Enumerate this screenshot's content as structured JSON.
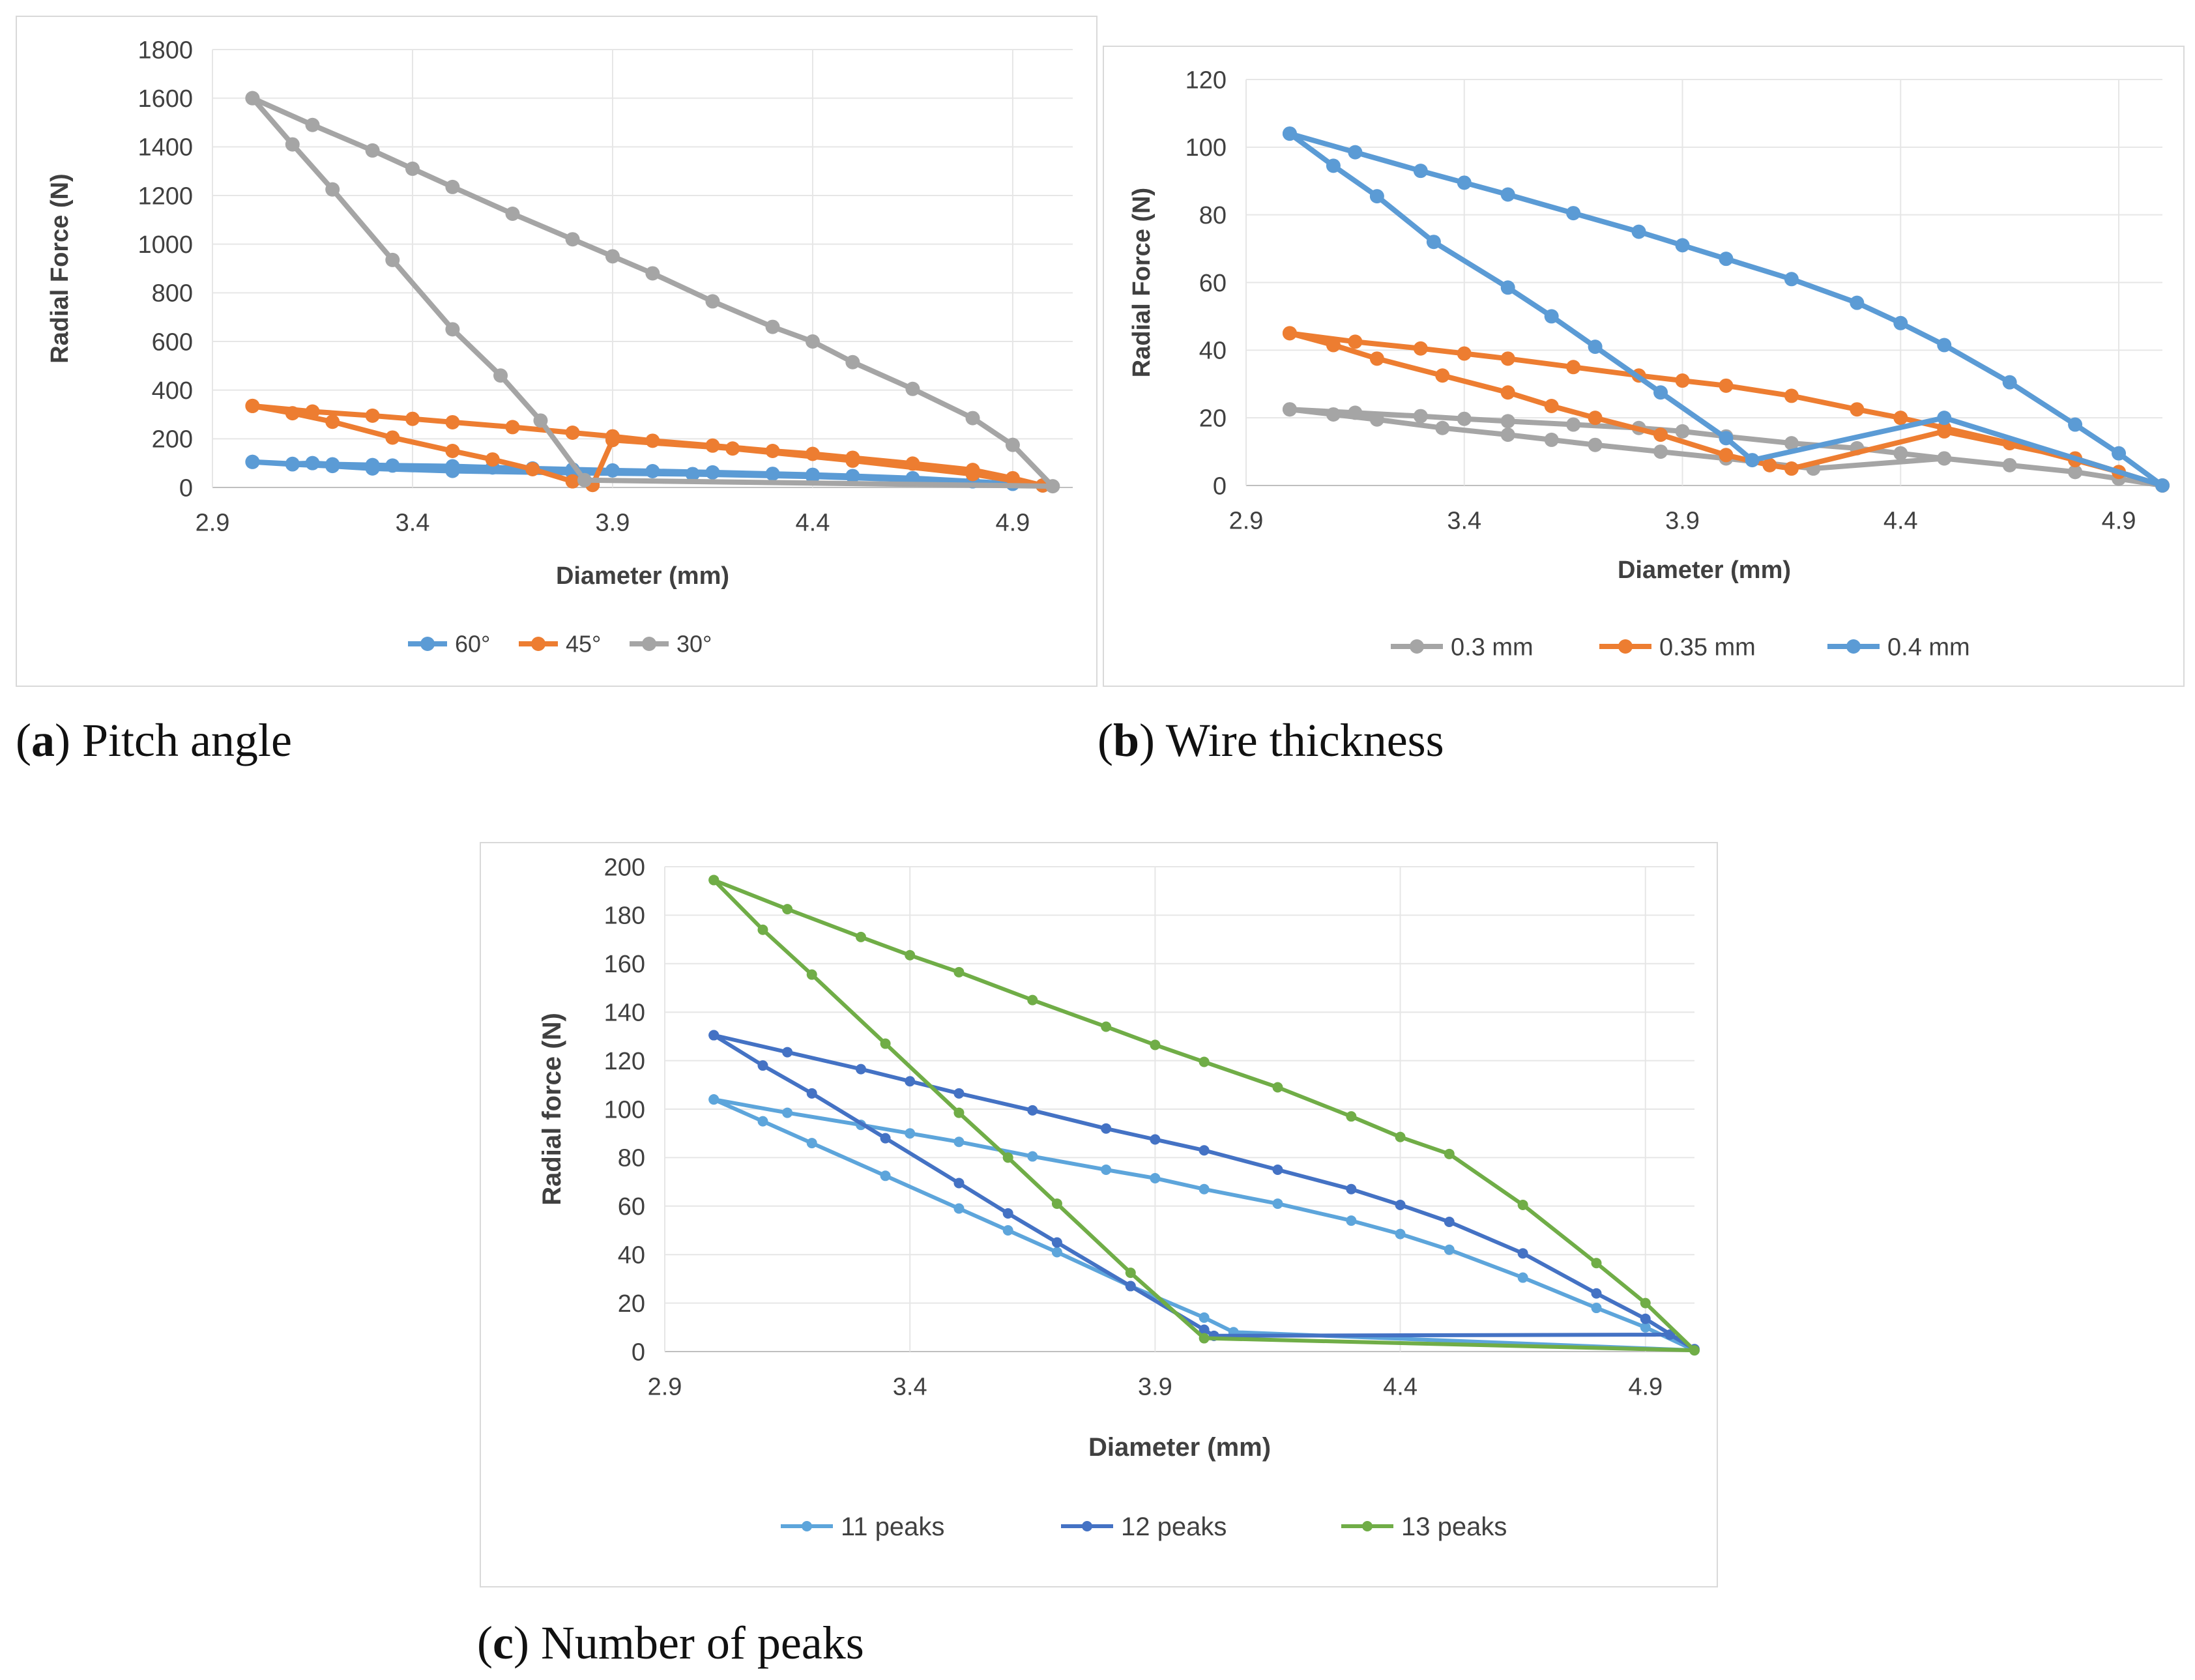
{
  "captions": [
    {
      "letter": "a",
      "text": "Pitch angle"
    },
    {
      "letter": "b",
      "text": "Wire thickness"
    },
    {
      "letter": "c",
      "text": "Number of peaks"
    }
  ],
  "chart_data": [
    {
      "type": "line",
      "xlabel": "Diameter (mm)",
      "ylabel": "Radial Force (N)",
      "xlim": [
        2.9,
        5.05
      ],
      "ylim": [
        0,
        1800
      ],
      "xticks": [
        2.9,
        3.4,
        3.9,
        4.4,
        4.9
      ],
      "xtick_labels": [
        "2.9",
        "3.4",
        "3.9",
        "4.4",
        "4.9"
      ],
      "yticks": [
        0,
        200,
        400,
        600,
        800,
        1000,
        1200,
        1400,
        1600,
        1800
      ],
      "ytick_labels": [
        "0",
        "200",
        "400",
        "600",
        "800",
        "1000",
        "1200",
        "1400",
        "1600",
        "1800"
      ],
      "legend_position": "bottom",
      "series": [
        {
          "name": "60°",
          "color": "#5b9bd5",
          "x": [
            3.0,
            3.1,
            3.15,
            3.2,
            3.3,
            3.35,
            3.5,
            3.6,
            3.7,
            3.8,
            3.9,
            4.0,
            4.15,
            4.3,
            4.4,
            4.5,
            4.65,
            4.8,
            4.9,
            4.975,
            4.9,
            4.65,
            4.4,
            4.1,
            3.8,
            3.5,
            3.3,
            3.2,
            3.1,
            3.0
          ],
          "y": [
            105,
            97,
            100,
            95,
            92,
            90,
            87,
            82,
            78,
            74,
            70,
            67,
            62,
            56,
            52,
            47,
            38,
            25,
            15,
            8,
            15,
            32,
            45,
            55,
            60,
            68,
            78,
            88,
            95,
            105
          ]
        },
        {
          "name": "45°",
          "color": "#ed7d31",
          "x": [
            3.0,
            3.15,
            3.3,
            3.4,
            3.5,
            3.65,
            3.8,
            3.9,
            4.0,
            4.15,
            4.3,
            4.4,
            4.5,
            4.65,
            4.8,
            4.9,
            4.975,
            4.8,
            4.5,
            4.2,
            3.9,
            3.85,
            3.8,
            3.7,
            3.6,
            3.5,
            3.35,
            3.2,
            3.1,
            3.0
          ],
          "y": [
            335,
            312,
            295,
            282,
            268,
            248,
            225,
            210,
            192,
            172,
            150,
            138,
            122,
            98,
            72,
            38,
            8,
            55,
            110,
            160,
            195,
            10,
            25,
            75,
            115,
            150,
            205,
            270,
            305,
            335
          ]
        },
        {
          "name": "30°",
          "color": "#a5a5a5",
          "x": [
            3.0,
            3.15,
            3.3,
            3.4,
            3.5,
            3.65,
            3.8,
            3.9,
            4.0,
            4.15,
            4.3,
            4.4,
            4.5,
            4.65,
            4.8,
            4.9,
            5.0,
            3.83,
            3.72,
            3.62,
            3.5,
            3.35,
            3.2,
            3.1,
            3.0
          ],
          "y": [
            1600,
            1490,
            1385,
            1310,
            1235,
            1125,
            1020,
            950,
            880,
            765,
            660,
            600,
            515,
            405,
            285,
            175,
            5,
            30,
            275,
            460,
            650,
            935,
            1225,
            1410,
            1600
          ]
        }
      ]
    },
    {
      "type": "line",
      "xlabel": "Diameter (mm)",
      "ylabel": "Radial Force (N)",
      "xlim": [
        2.9,
        5.0
      ],
      "ylim": [
        0,
        120
      ],
      "xticks": [
        2.9,
        3.4,
        3.9,
        4.4,
        4.9
      ],
      "xtick_labels": [
        "2.9",
        "3.4",
        "3.9",
        "4.4",
        "4.9"
      ],
      "yticks": [
        0,
        20,
        40,
        60,
        80,
        100,
        120
      ],
      "ytick_labels": [
        "0",
        "20",
        "40",
        "60",
        "80",
        "100",
        "120"
      ],
      "legend_position": "bottom",
      "series": [
        {
          "name": "0.3 mm",
          "color": "#a5a5a5",
          "x": [
            3.0,
            3.15,
            3.3,
            3.4,
            3.5,
            3.65,
            3.8,
            3.9,
            4.0,
            4.15,
            4.3,
            4.4,
            4.5,
            4.65,
            4.8,
            4.9,
            5.0,
            4.8,
            4.5,
            4.2,
            4.0,
            3.85,
            3.7,
            3.6,
            3.5,
            3.35,
            3.2,
            3.1,
            3.0
          ],
          "y": [
            22.5,
            21.5,
            20.5,
            19.7,
            19.0,
            18.0,
            17.0,
            16.0,
            14.5,
            12.5,
            11.0,
            9.5,
            8.0,
            6.0,
            4.0,
            2.0,
            0.0,
            4.0,
            8.0,
            5.0,
            8.0,
            10.0,
            12.0,
            13.5,
            15.0,
            17.0,
            19.5,
            21.0,
            22.5
          ]
        },
        {
          "name": "0.35 mm",
          "color": "#ed7d31",
          "x": [
            3.0,
            3.15,
            3.3,
            3.4,
            3.5,
            3.65,
            3.8,
            3.9,
            4.0,
            4.15,
            4.3,
            4.4,
            4.5,
            4.65,
            4.8,
            4.9,
            5.0,
            4.8,
            4.5,
            4.15,
            4.1,
            4.0,
            3.85,
            3.7,
            3.6,
            3.5,
            3.35,
            3.2,
            3.1,
            3.0
          ],
          "y": [
            45.0,
            42.5,
            40.5,
            39.0,
            37.5,
            35.0,
            32.5,
            31.0,
            29.5,
            26.5,
            22.5,
            20.0,
            17.0,
            12.5,
            7.5,
            4.0,
            0.0,
            8.0,
            16.0,
            5.0,
            6.0,
            9.0,
            15.0,
            20.0,
            23.5,
            27.5,
            32.5,
            37.5,
            41.5,
            45.0
          ]
        },
        {
          "name": "0.4 mm",
          "color": "#5b9bd5",
          "x": [
            3.0,
            3.15,
            3.3,
            3.4,
            3.5,
            3.65,
            3.8,
            3.9,
            4.0,
            4.15,
            4.3,
            4.4,
            4.5,
            4.65,
            4.8,
            4.9,
            5.0,
            4.5,
            4.06,
            4.0,
            3.85,
            3.7,
            3.6,
            3.5,
            3.33,
            3.2,
            3.1,
            3.0
          ],
          "y": [
            104.0,
            98.5,
            93.0,
            89.5,
            86.0,
            80.5,
            75.0,
            71.0,
            67.0,
            61.0,
            54.0,
            48.0,
            41.5,
            30.5,
            18.0,
            9.5,
            0.0,
            20.0,
            7.5,
            14.0,
            27.5,
            41.0,
            50.0,
            58.5,
            72.0,
            85.5,
            94.5,
            104.0
          ]
        }
      ]
    },
    {
      "type": "line",
      "xlabel": "Diameter (mm)",
      "ylabel": "Radial force (N)",
      "xlim": [
        2.9,
        5.0
      ],
      "ylim": [
        0,
        200
      ],
      "xticks": [
        2.9,
        3.4,
        3.9,
        4.4,
        4.9
      ],
      "xtick_labels": [
        "2.9",
        "3.4",
        "3.9",
        "4.4",
        "4.9"
      ],
      "yticks": [
        0,
        20,
        40,
        60,
        80,
        100,
        120,
        140,
        160,
        180,
        200
      ],
      "ytick_labels": [
        "0",
        "20",
        "40",
        "60",
        "80",
        "100",
        "120",
        "140",
        "160",
        "180",
        "200"
      ],
      "legend_position": "bottom",
      "series": [
        {
          "name": "11 peaks",
          "color": "#5da5db",
          "x": [
            3.0,
            3.15,
            3.3,
            3.4,
            3.5,
            3.65,
            3.8,
            3.9,
            4.0,
            4.15,
            4.3,
            4.4,
            4.5,
            4.65,
            4.8,
            4.9,
            5.0,
            4.06,
            4.0,
            3.85,
            3.7,
            3.6,
            3.5,
            3.35,
            3.2,
            3.1,
            3.0
          ],
          "y": [
            104,
            98.5,
            93.5,
            90,
            86.5,
            80.5,
            75,
            71.5,
            67,
            61,
            54,
            48.5,
            42,
            30.5,
            18,
            10,
            0.5,
            8,
            14,
            27,
            41,
            50,
            59,
            72.5,
            86,
            95,
            104
          ]
        },
        {
          "name": "12 peaks",
          "color": "#4472c4",
          "x": [
            3.0,
            3.15,
            3.3,
            3.4,
            3.5,
            3.65,
            3.8,
            3.9,
            4.0,
            4.15,
            4.3,
            4.4,
            4.5,
            4.65,
            4.8,
            4.9,
            5.0,
            4.95,
            4.02,
            4.0,
            3.85,
            3.7,
            3.6,
            3.5,
            3.35,
            3.2,
            3.1,
            3.0
          ],
          "y": [
            130.5,
            123.5,
            116.5,
            111.5,
            106.5,
            99.5,
            92,
            87.5,
            83,
            75,
            67,
            60.5,
            53.5,
            40.5,
            24,
            13.5,
            1,
            7,
            6.5,
            9,
            27,
            45,
            57,
            69.5,
            88,
            106.5,
            118,
            130.5
          ]
        },
        {
          "name": "13 peaks",
          "color": "#70ad47",
          "x": [
            3.0,
            3.15,
            3.3,
            3.4,
            3.5,
            3.65,
            3.8,
            3.9,
            4.0,
            4.15,
            4.3,
            4.4,
            4.5,
            4.65,
            4.8,
            4.9,
            5.0,
            4.0,
            3.85,
            3.7,
            3.6,
            3.5,
            3.35,
            3.2,
            3.1,
            3.0
          ],
          "y": [
            194.5,
            182.5,
            171,
            163.5,
            156.5,
            145,
            134,
            126.5,
            119.5,
            109,
            97,
            88.5,
            81.5,
            60.5,
            36.5,
            20,
            0.5,
            5.5,
            32.5,
            61,
            80,
            98.5,
            127,
            155.5,
            174,
            194.5
          ]
        }
      ]
    }
  ]
}
